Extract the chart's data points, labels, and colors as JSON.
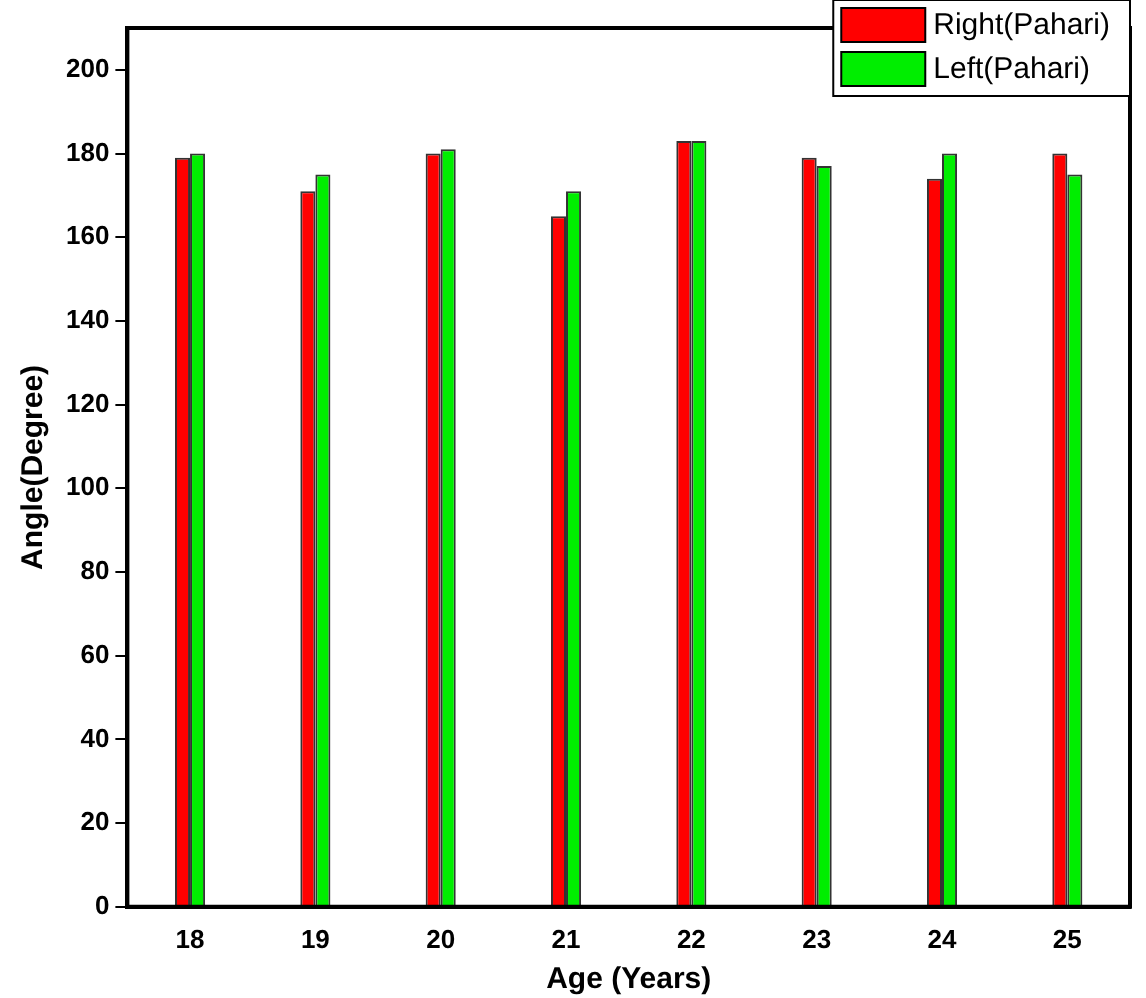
{
  "chart_data": {
    "type": "bar",
    "xlabel": "Age (Years)",
    "ylabel": "Angle(Degree)",
    "categories": [
      "18",
      "19",
      "20",
      "21",
      "22",
      "23",
      "24",
      "25"
    ],
    "series": [
      {
        "name": "Right(Pahari)",
        "color": "#ff0000",
        "values": [
          179,
          171,
          180,
          165,
          183,
          179,
          174,
          180
        ]
      },
      {
        "name": "Left(Pahari)",
        "color": "#00ee00",
        "values": [
          180,
          175,
          181,
          171,
          183,
          177,
          180,
          175
        ]
      }
    ],
    "ylim": [
      0,
      210
    ],
    "yticks": [
      0,
      20,
      40,
      60,
      80,
      100,
      120,
      140,
      160,
      180,
      200
    ],
    "grid": false,
    "legend": "top right"
  }
}
